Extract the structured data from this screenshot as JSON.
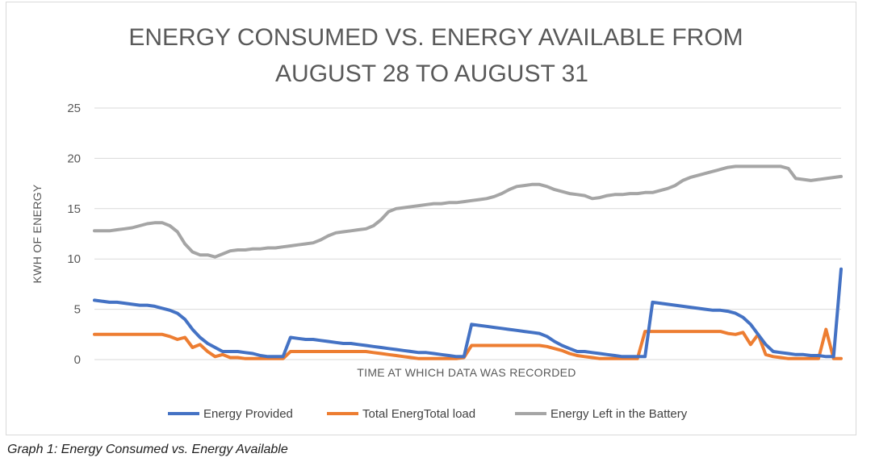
{
  "caption": "Graph 1: Energy Consumed vs. Energy Available",
  "chart_data": {
    "type": "line",
    "title_lines": [
      "ENERGY CONSUMED VS. ENERGY AVAILABLE FROM",
      "AUGUST 28 TO AUGUST 31"
    ],
    "xlabel": "TIME AT WHICH DATA WAS RECORDED",
    "ylabel": "KWH OF ENERGY",
    "ylim": [
      0,
      25
    ],
    "yticks": [
      "0",
      "5",
      "10",
      "15",
      "20",
      "25"
    ],
    "grid": true,
    "legend_position": "bottom",
    "point_count": 100,
    "series": [
      {
        "name": "Energy Provided",
        "color": "#4472C4",
        "values": [
          5.9,
          5.8,
          5.7,
          5.7,
          5.6,
          5.5,
          5.4,
          5.4,
          5.3,
          5.1,
          4.9,
          4.6,
          4.0,
          3.0,
          2.2,
          1.6,
          1.2,
          0.8,
          0.8,
          0.8,
          0.7,
          0.6,
          0.4,
          0.3,
          0.3,
          0.3,
          2.2,
          2.1,
          2.0,
          2.0,
          1.9,
          1.8,
          1.7,
          1.6,
          1.6,
          1.5,
          1.4,
          1.3,
          1.2,
          1.1,
          1.0,
          0.9,
          0.8,
          0.7,
          0.7,
          0.6,
          0.5,
          0.4,
          0.3,
          0.3,
          3.5,
          3.4,
          3.3,
          3.2,
          3.1,
          3.0,
          2.9,
          2.8,
          2.7,
          2.6,
          2.3,
          1.8,
          1.4,
          1.1,
          0.8,
          0.8,
          0.7,
          0.6,
          0.5,
          0.4,
          0.3,
          0.3,
          0.3,
          0.3,
          5.7,
          5.6,
          5.5,
          5.4,
          5.3,
          5.2,
          5.1,
          5.0,
          4.9,
          4.9,
          4.8,
          4.6,
          4.2,
          3.5,
          2.5,
          1.5,
          0.8,
          0.7,
          0.6,
          0.5,
          0.5,
          0.4,
          0.4,
          0.3,
          0.3,
          9.0
        ]
      },
      {
        "name": "Total EnergTotal load",
        "color": "#ED7D31",
        "values": [
          2.5,
          2.5,
          2.5,
          2.5,
          2.5,
          2.5,
          2.5,
          2.5,
          2.5,
          2.5,
          2.3,
          2.0,
          2.2,
          1.2,
          1.5,
          0.8,
          0.3,
          0.5,
          0.2,
          0.2,
          0.1,
          0.1,
          0.1,
          0.1,
          0.1,
          0.1,
          0.8,
          0.8,
          0.8,
          0.8,
          0.8,
          0.8,
          0.8,
          0.8,
          0.8,
          0.8,
          0.8,
          0.7,
          0.6,
          0.5,
          0.4,
          0.3,
          0.2,
          0.1,
          0.1,
          0.1,
          0.1,
          0.1,
          0.1,
          0.2,
          1.4,
          1.4,
          1.4,
          1.4,
          1.4,
          1.4,
          1.4,
          1.4,
          1.4,
          1.4,
          1.3,
          1.1,
          0.9,
          0.6,
          0.4,
          0.3,
          0.2,
          0.1,
          0.1,
          0.1,
          0.1,
          0.1,
          0.1,
          2.8,
          2.8,
          2.8,
          2.8,
          2.8,
          2.8,
          2.8,
          2.8,
          2.8,
          2.8,
          2.8,
          2.6,
          2.5,
          2.7,
          1.5,
          2.5,
          0.5,
          0.3,
          0.2,
          0.1,
          0.1,
          0.1,
          0.1,
          0.1,
          3.0,
          0.1,
          0.1
        ]
      },
      {
        "name": "Energy Left in the Battery",
        "color": "#A5A5A5",
        "values": [
          12.8,
          12.8,
          12.8,
          12.9,
          13.0,
          13.1,
          13.3,
          13.5,
          13.6,
          13.6,
          13.3,
          12.7,
          11.5,
          10.7,
          10.4,
          10.4,
          10.2,
          10.5,
          10.8,
          10.9,
          10.9,
          11.0,
          11.0,
          11.1,
          11.1,
          11.2,
          11.3,
          11.4,
          11.5,
          11.6,
          11.9,
          12.3,
          12.6,
          12.7,
          12.8,
          12.9,
          13.0,
          13.3,
          13.9,
          14.7,
          15.0,
          15.1,
          15.2,
          15.3,
          15.4,
          15.5,
          15.5,
          15.6,
          15.6,
          15.7,
          15.8,
          15.9,
          16.0,
          16.2,
          16.5,
          16.9,
          17.2,
          17.3,
          17.4,
          17.4,
          17.2,
          16.9,
          16.7,
          16.5,
          16.4,
          16.3,
          16.0,
          16.1,
          16.3,
          16.4,
          16.4,
          16.5,
          16.5,
          16.6,
          16.6,
          16.8,
          17.0,
          17.3,
          17.8,
          18.1,
          18.3,
          18.5,
          18.7,
          18.9,
          19.1,
          19.2,
          19.2,
          19.2,
          19.2,
          19.2,
          19.2,
          19.2,
          19.0,
          18.0,
          17.9,
          17.8,
          17.9,
          18.0,
          18.1,
          18.2
        ]
      }
    ]
  }
}
